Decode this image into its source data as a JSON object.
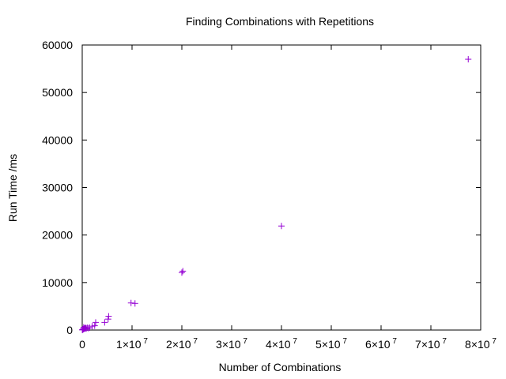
{
  "chart_data": {
    "type": "scatter",
    "title": "Finding Combinations with Repetitions",
    "xlabel": "Number of Combinations",
    "ylabel": "Run Time /ms",
    "xlim": [
      0,
      80000000
    ],
    "ylim": [
      0,
      60000
    ],
    "grid": false,
    "legend": "none",
    "marker": "plus",
    "color": "#9400d3",
    "x_ticks": [
      {
        "value": 0,
        "label": "0",
        "exp": ""
      },
      {
        "value": 10000000,
        "label": "1×10",
        "exp": "7"
      },
      {
        "value": 20000000,
        "label": "2×10",
        "exp": "7"
      },
      {
        "value": 30000000,
        "label": "3×10",
        "exp": "7"
      },
      {
        "value": 40000000,
        "label": "4×10",
        "exp": "7"
      },
      {
        "value": 50000000,
        "label": "5×10",
        "exp": "7"
      },
      {
        "value": 60000000,
        "label": "6×10",
        "exp": "7"
      },
      {
        "value": 70000000,
        "label": "7×10",
        "exp": "7"
      },
      {
        "value": 80000000,
        "label": "8×10",
        "exp": "7"
      }
    ],
    "y_ticks": [
      {
        "value": 0,
        "label": "0"
      },
      {
        "value": 10000,
        "label": "10000"
      },
      {
        "value": 20000,
        "label": "20000"
      },
      {
        "value": 30000,
        "label": "30000"
      },
      {
        "value": 40000,
        "label": "40000"
      },
      {
        "value": 50000,
        "label": "50000"
      },
      {
        "value": 60000,
        "label": "60000"
      }
    ],
    "series": [
      {
        "points": [
          [
            20000,
            30
          ],
          [
            50000,
            60
          ],
          [
            100000,
            100
          ],
          [
            150000,
            150
          ],
          [
            200000,
            200
          ],
          [
            300000,
            250
          ],
          [
            400000,
            300
          ],
          [
            500000,
            350
          ],
          [
            600000,
            400
          ],
          [
            700000,
            450
          ],
          [
            300000,
            600
          ],
          [
            800000,
            300
          ],
          [
            1000000,
            500
          ],
          [
            1200000,
            400
          ],
          [
            1500000,
            500
          ],
          [
            2000000,
            800
          ],
          [
            2500000,
            900
          ],
          [
            2700000,
            1600
          ],
          [
            4500000,
            1600
          ],
          [
            5200000,
            2300
          ],
          [
            5300000,
            2900
          ],
          [
            9800000,
            5700
          ],
          [
            10600000,
            5600
          ],
          [
            20000000,
            12100
          ],
          [
            20200000,
            12400
          ],
          [
            40000000,
            21900
          ],
          [
            77500000,
            57000
          ]
        ]
      }
    ]
  }
}
